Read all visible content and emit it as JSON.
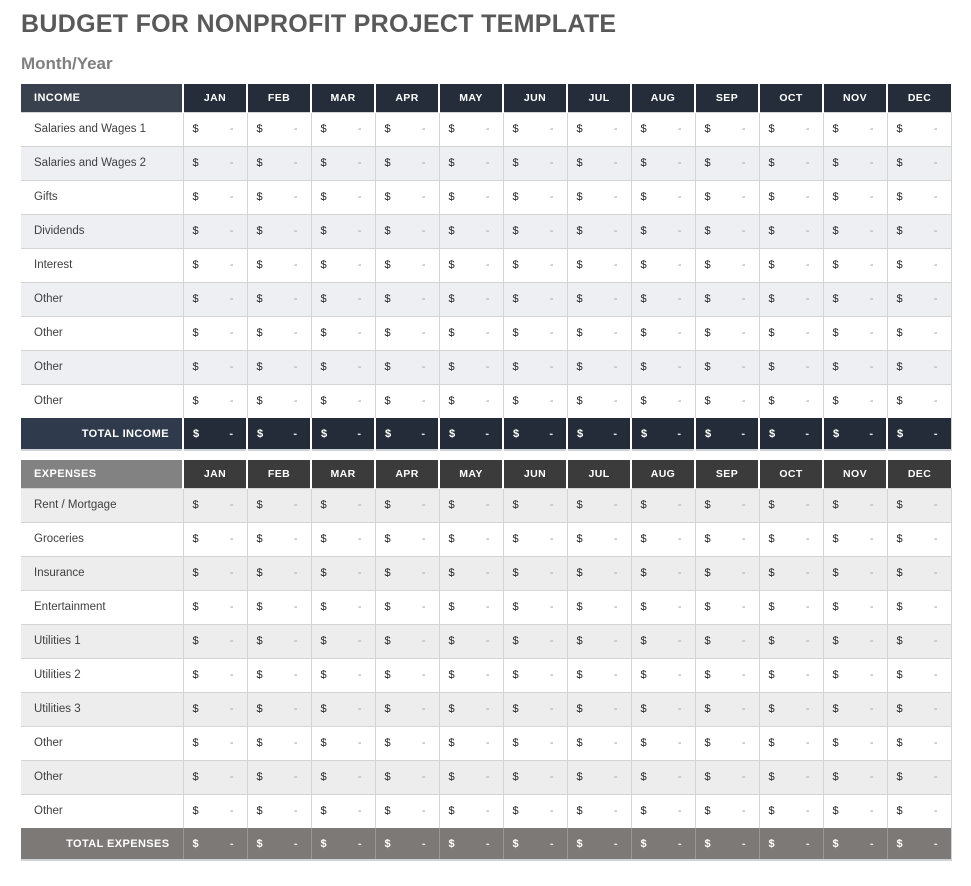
{
  "page": {
    "title": "BUDGET FOR NONPROFIT PROJECT TEMPLATE",
    "subtitle": "Month/Year"
  },
  "months": [
    "JAN",
    "FEB",
    "MAR",
    "APR",
    "MAY",
    "JUN",
    "JUL",
    "AUG",
    "SEP",
    "OCT",
    "NOV",
    "DEC"
  ],
  "currency_symbol": "$",
  "empty_value": "-",
  "income_table": {
    "header_label": "INCOME",
    "rows": [
      "Salaries and Wages 1",
      "Salaries and Wages 2",
      "Gifts",
      "Dividends",
      "Interest",
      "Other",
      "Other",
      "Other",
      "Other"
    ],
    "total_label": "TOTAL INCOME"
  },
  "expenses_table": {
    "header_label": "EXPENSES",
    "rows": [
      "Rent / Mortgage",
      "Groceries",
      "Insurance",
      "Entertainment",
      "Utilities 1",
      "Utilities 2",
      "Utilities 3",
      "Other",
      "Other",
      "Other"
    ],
    "total_label": "TOTAL EXPENSES"
  },
  "colors": {
    "title_text": "#595959",
    "subtitle_text": "#7F7F7F",
    "income_header_label_bg": "#39414F",
    "income_header_month_bg": "#252D3A",
    "income_total_label_bg": "#2F3B4C",
    "income_total_value_bg": "#242C39",
    "income_row_alt_bg": "#EDEFF3",
    "expenses_header_label_bg": "#828282",
    "expenses_header_month_bg": "#3B3B3B",
    "expenses_total_bg": "#7C7977",
    "expenses_row_alt_bg": "#EDEDEE",
    "grid_line": "#D4D4D4",
    "label_text": "#3F3F3F",
    "currency_text": "#262626",
    "dash_text": "#999999"
  }
}
